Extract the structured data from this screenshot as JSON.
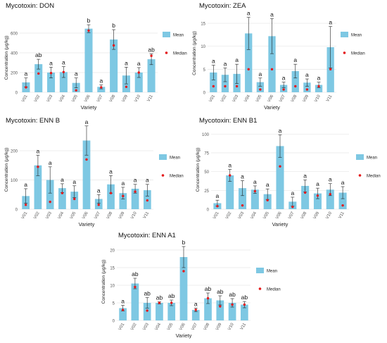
{
  "colors": {
    "bar": "#7EC8E3",
    "median": "#E41A1C",
    "grid": "#E6E6E6",
    "axis_text": "#555555",
    "error": "#222222"
  },
  "chart_data": [
    {
      "type": "bar",
      "title": "Mycotoxin: DON",
      "xlabel": "Variety",
      "ylabel": "Concentration (μg/kg)",
      "ylim": [
        0,
        700
      ],
      "yticks": [
        0,
        200,
        400,
        600
      ],
      "categories": [
        "V01",
        "V02",
        "V03",
        "V04",
        "V05",
        "V06",
        "V07",
        "V08",
        "V09",
        "V10",
        "V11"
      ],
      "series": [
        {
          "name": "Mean",
          "values": [
            100,
            285,
            200,
            205,
            95,
            645,
            55,
            535,
            170,
            200,
            335
          ],
          "errors": [
            45,
            50,
            55,
            55,
            50,
            40,
            20,
            100,
            85,
            50,
            55
          ]
        },
        {
          "name": "Median",
          "values": [
            50,
            190,
            195,
            205,
            20,
            625,
            50,
            475,
            55,
            200,
            370
          ]
        }
      ],
      "letters": [
        "a",
        "ab",
        "a",
        "a",
        "a",
        "b",
        "a",
        "b",
        "a",
        "a",
        "ab"
      ],
      "legend": "right"
    },
    {
      "type": "bar",
      "title": "Mycotoxin: ZEA",
      "xlabel": "Variety",
      "ylabel": "Concentration (μg/kg)",
      "ylim": [
        0,
        17
      ],
      "yticks": [
        0,
        5,
        10,
        15
      ],
      "categories": [
        "V01",
        "V02",
        "V03",
        "V04",
        "V05",
        "V06",
        "V07",
        "V08",
        "V09",
        "V10",
        "V11"
      ],
      "series": [
        {
          "name": "Mean",
          "values": [
            4.3,
            3.8,
            4.0,
            12.8,
            2.2,
            12.2,
            1.6,
            4.6,
            2.1,
            1.6,
            9.8
          ],
          "errors": [
            1.6,
            1.5,
            2.1,
            3.5,
            0.9,
            3.8,
            0.6,
            1.5,
            0.8,
            0.6,
            4.5
          ]
        },
        {
          "name": "Median",
          "values": [
            1.3,
            1.3,
            1.3,
            5.0,
            0.6,
            5.0,
            0.6,
            1.3,
            0.6,
            1.3,
            5.0
          ]
        }
      ],
      "letters": [
        "a",
        "a",
        "a",
        "a",
        "a",
        "a",
        "a",
        "a",
        "a",
        "a",
        "a"
      ],
      "legend": "right"
    },
    {
      "type": "bar",
      "title": "Mycotoxin: ENN B",
      "xlabel": "Variety",
      "ylabel": "Concentration (μg/kg)",
      "ylim": [
        0,
        270
      ],
      "yticks": [
        0,
        100,
        200
      ],
      "categories": [
        "V01",
        "V02",
        "V03",
        "V04",
        "V05",
        "V06",
        "V07",
        "V08",
        "V09",
        "V10",
        "V11"
      ],
      "series": [
        {
          "name": "Mean",
          "values": [
            45,
            150,
            100,
            72,
            60,
            235,
            35,
            85,
            55,
            70,
            65
          ],
          "errors": [
            25,
            35,
            45,
            15,
            20,
            50,
            15,
            30,
            20,
            15,
            20
          ]
        },
        {
          "name": "Median",
          "values": [
            15,
            145,
            25,
            55,
            35,
            170,
            15,
            55,
            45,
            60,
            30
          ]
        }
      ],
      "letters": [
        "a",
        "a",
        "a",
        "a",
        "a",
        "a",
        "a",
        "a",
        "a",
        "a",
        "a"
      ],
      "legend": "right"
    },
    {
      "type": "bar",
      "title": "Mycotoxin: ENN B1",
      "xlabel": "Variety",
      "ylabel": "Concentration (μg/kg)",
      "ylim": [
        0,
        105
      ],
      "yticks": [
        0,
        25,
        50,
        75,
        100
      ],
      "categories": [
        "V01",
        "V02",
        "V03",
        "V04",
        "V05",
        "V06",
        "V07",
        "V08",
        "V09",
        "V10",
        "V11"
      ],
      "series": [
        {
          "name": "Mean",
          "values": [
            8,
            45,
            28,
            26,
            20,
            84,
            10,
            31,
            21,
            26,
            22
          ],
          "errors": [
            4,
            8,
            10,
            5,
            7,
            15,
            6,
            8,
            7,
            8,
            8
          ]
        },
        {
          "name": "Median",
          "values": [
            4,
            45,
            5,
            24,
            12,
            57,
            3,
            22,
            18,
            20,
            5
          ]
        }
      ],
      "letters": [
        "a",
        "a",
        "a",
        "a",
        "a",
        "a",
        "a",
        "a",
        "a",
        "a",
        "a"
      ],
      "legend": "right"
    },
    {
      "type": "bar",
      "title": "Mycotoxin: ENN A1",
      "xlabel": "Variety",
      "ylabel": "Concentration (μg/kg)",
      "ylim": [
        0,
        22
      ],
      "yticks": [
        0,
        5,
        10,
        15,
        20
      ],
      "categories": [
        "V01",
        "V02",
        "V03",
        "V04",
        "V05",
        "V06",
        "V07",
        "V08",
        "V09",
        "V10",
        "V11"
      ],
      "series": [
        {
          "name": "Mean",
          "values": [
            3.5,
            10.5,
            5.0,
            5.0,
            5.0,
            18.0,
            3.0,
            6.3,
            5.7,
            5.0,
            4.5
          ],
          "errors": [
            0.8,
            1.5,
            1.5,
            0.3,
            0.8,
            3.0,
            0.5,
            1.5,
            1.3,
            1.2,
            0.9
          ]
        },
        {
          "name": "Median",
          "values": [
            3.0,
            9.5,
            2.8,
            5.0,
            5.0,
            14.0,
            3.0,
            6.3,
            4.0,
            4.5,
            4.5
          ]
        }
      ],
      "letters": [
        "a",
        "ab",
        "ab",
        "ab",
        "ab",
        "b",
        "a",
        "ab",
        "ab",
        "ab",
        "ab"
      ],
      "legend": "right"
    }
  ]
}
